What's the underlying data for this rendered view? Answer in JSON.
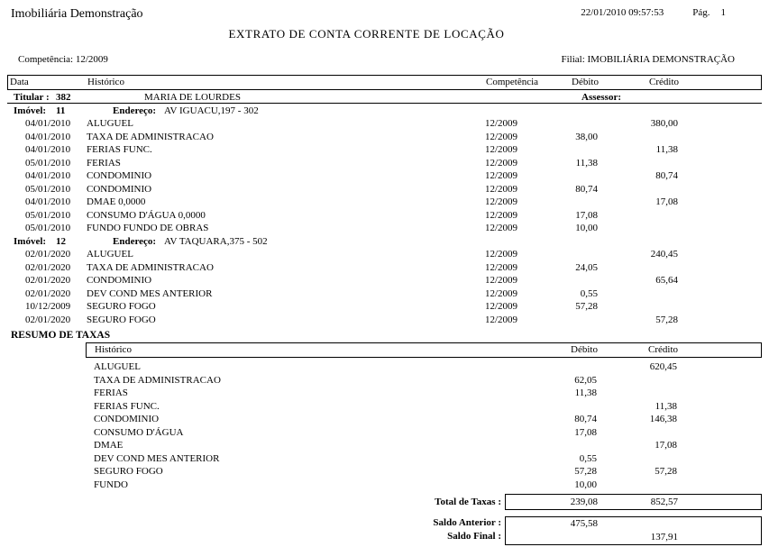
{
  "report": {
    "company": "Imobiliária Demonstração",
    "datetime": "22/01/2010 09:57:53",
    "page_label": "Pág.",
    "page_number": "1",
    "title": "EXTRATO DE CONTA CORRENTE DE LOCAÇÃO",
    "competencia_label": "Competência:",
    "competencia_value": "12/2009",
    "filial_label": "Filial:",
    "filial_value": "IMOBILIÁRIA DEMONSTRAÇÃO"
  },
  "table": {
    "headers": {
      "data": "Data",
      "historico": "Histórico",
      "competencia": "Competência",
      "debito": "Débito",
      "credito": "Crédito"
    },
    "titular": {
      "label": "Titular :",
      "code": "382",
      "name": "MARIA DE LOURDES",
      "assessor_label": "Assessor:"
    },
    "groups": [
      {
        "imovel_label": "Imóvel:",
        "imovel_code": "11",
        "endereco_label": "Endereço:",
        "endereco": "AV IGUACU,197 - 302",
        "rows": [
          {
            "data": "04/01/2010",
            "historico": "ALUGUEL",
            "competencia": "12/2009",
            "debito": "",
            "credito": "380,00"
          },
          {
            "data": "04/01/2010",
            "historico": "TAXA DE ADMINISTRACAO",
            "competencia": "12/2009",
            "debito": "38,00",
            "credito": ""
          },
          {
            "data": "04/01/2010",
            "historico": "FERIAS FUNC.",
            "competencia": "12/2009",
            "debito": "",
            "credito": "11,38"
          },
          {
            "data": "05/01/2010",
            "historico": "FERIAS",
            "competencia": "12/2009",
            "debito": "11,38",
            "credito": ""
          },
          {
            "data": "04/01/2010",
            "historico": "CONDOMINIO",
            "competencia": "12/2009",
            "debito": "",
            "credito": "80,74"
          },
          {
            "data": "05/01/2010",
            "historico": "CONDOMINIO",
            "competencia": "12/2009",
            "debito": "80,74",
            "credito": ""
          },
          {
            "data": "04/01/2010",
            "historico": "DMAE 0,0000",
            "competencia": "12/2009",
            "debito": "",
            "credito": "17,08"
          },
          {
            "data": "05/01/2010",
            "historico": "CONSUMO D'ÁGUA 0,0000",
            "competencia": "12/2009",
            "debito": "17,08",
            "credito": ""
          },
          {
            "data": "05/01/2010",
            "historico": "FUNDO FUNDO DE OBRAS",
            "competencia": "12/2009",
            "debito": "10,00",
            "credito": ""
          }
        ]
      },
      {
        "imovel_label": "Imóvel:",
        "imovel_code": "12",
        "endereco_label": "Endereço:",
        "endereco": "AV TAQUARA,375 - 502",
        "rows": [
          {
            "data": "02/01/2020",
            "historico": "ALUGUEL",
            "competencia": "12/2009",
            "debito": "",
            "credito": "240,45"
          },
          {
            "data": "02/01/2020",
            "historico": "TAXA DE ADMINISTRACAO",
            "competencia": "12/2009",
            "debito": "24,05",
            "credito": ""
          },
          {
            "data": "02/01/2020",
            "historico": "CONDOMINIO",
            "competencia": "12/2009",
            "debito": "",
            "credito": "65,64"
          },
          {
            "data": "02/01/2020",
            "historico": "DEV COND MES ANTERIOR",
            "competencia": "12/2009",
            "debito": "0,55",
            "credito": ""
          },
          {
            "data": "10/12/2009",
            "historico": "SEGURO FOGO",
            "competencia": "12/2009",
            "debito": "57,28",
            "credito": ""
          },
          {
            "data": "02/01/2020",
            "historico": "SEGURO FOGO",
            "competencia": "12/2009",
            "debito": "",
            "credito": "57,28"
          }
        ]
      }
    ]
  },
  "resumo": {
    "title": "RESUMO DE TAXAS",
    "headers": {
      "historico": "Histórico",
      "debito": "Débito",
      "credito": "Crédito"
    },
    "rows": [
      {
        "historico": "ALUGUEL",
        "debito": "",
        "credito": "620,45"
      },
      {
        "historico": "TAXA DE ADMINISTRACAO",
        "debito": "62,05",
        "credito": ""
      },
      {
        "historico": "FERIAS",
        "debito": "11,38",
        "credito": ""
      },
      {
        "historico": "FERIAS FUNC.",
        "debito": "",
        "credito": "11,38"
      },
      {
        "historico": "CONDOMINIO",
        "debito": "80,74",
        "credito": "146,38"
      },
      {
        "historico": "CONSUMO D'ÁGUA",
        "debito": "17,08",
        "credito": ""
      },
      {
        "historico": "DMAE",
        "debito": "",
        "credito": "17,08"
      },
      {
        "historico": "DEV COND MES ANTERIOR",
        "debito": "0,55",
        "credito": ""
      },
      {
        "historico": "SEGURO FOGO",
        "debito": "57,28",
        "credito": "57,28"
      },
      {
        "historico": "FUNDO",
        "debito": "10,00",
        "credito": ""
      }
    ],
    "total": {
      "label": "Total de Taxas :",
      "debito": "239,08",
      "credito": "852,57"
    },
    "saldo_anterior": {
      "label": "Saldo Anterior :",
      "value": "475,58"
    },
    "saldo_final": {
      "label": "Saldo Final :",
      "value": "137,91"
    }
  }
}
